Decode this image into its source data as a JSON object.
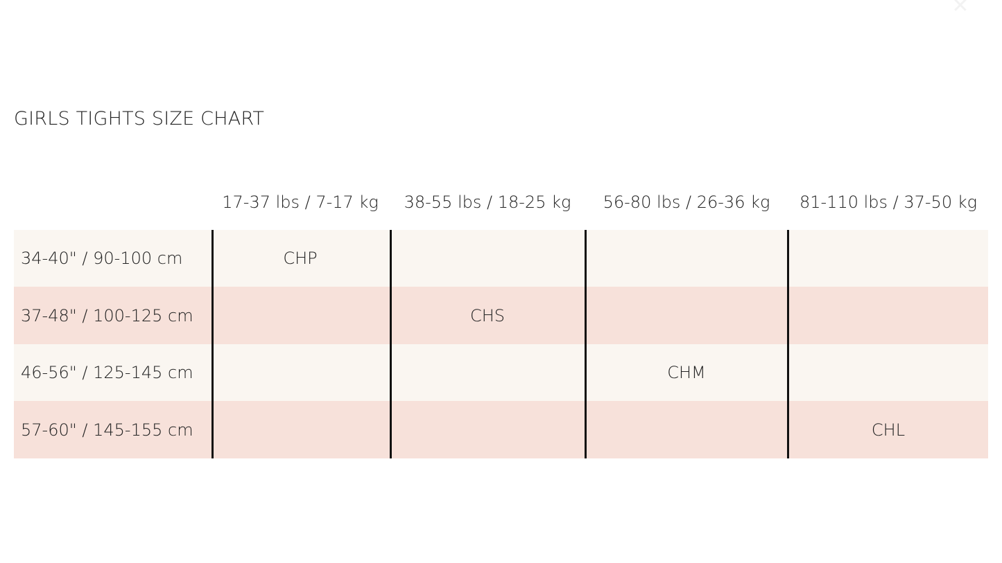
{
  "close_icon": "close-icon",
  "title": "GIRLS TIGHTS SIZE CHART",
  "columns": [
    "17-37 lbs / 7-17 kg",
    "38-55 lbs / 18-25 kg",
    "56-80 lbs / 26-36 kg",
    "81-110 lbs / 37-50 kg"
  ],
  "rows": [
    {
      "label": "34-40\" / 90-100 cm",
      "cells": [
        "CHP",
        "",
        "",
        ""
      ]
    },
    {
      "label": "37-48\" / 100-125 cm",
      "cells": [
        "",
        "CHS",
        "",
        ""
      ]
    },
    {
      "label": "46-56\" / 125-145 cm",
      "cells": [
        "",
        "",
        "CHM",
        ""
      ]
    },
    {
      "label": "57-60\" / 145-155 cm",
      "cells": [
        "",
        "",
        "",
        "CHL"
      ]
    }
  ],
  "colors": {
    "row_light": "#faf6f1",
    "row_pink": "#f7e1da",
    "divider": "#111111"
  }
}
